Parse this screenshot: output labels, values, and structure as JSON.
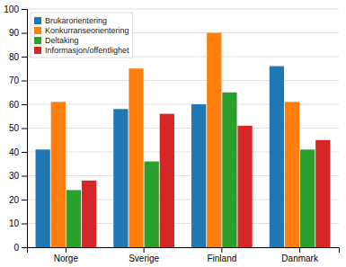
{
  "chart_data": {
    "type": "bar",
    "categories": [
      "Norge",
      "Sverige",
      "Finland",
      "Danmark"
    ],
    "series": [
      {
        "name": "Brukarorientering",
        "values": [
          41,
          58,
          60,
          76
        ]
      },
      {
        "name": "Konkurranseorientering",
        "values": [
          61,
          75,
          90,
          61
        ]
      },
      {
        "name": "Deltaking",
        "values": [
          24,
          36,
          65,
          41
        ]
      },
      {
        "name": "Informasjon/offentlighet",
        "values": [
          28,
          56,
          51,
          45
        ]
      }
    ],
    "ylim": [
      0,
      100
    ],
    "yticks": [
      0,
      10,
      20,
      30,
      40,
      50,
      60,
      70,
      80,
      90,
      100
    ],
    "grid": true,
    "legend": "upper left"
  }
}
